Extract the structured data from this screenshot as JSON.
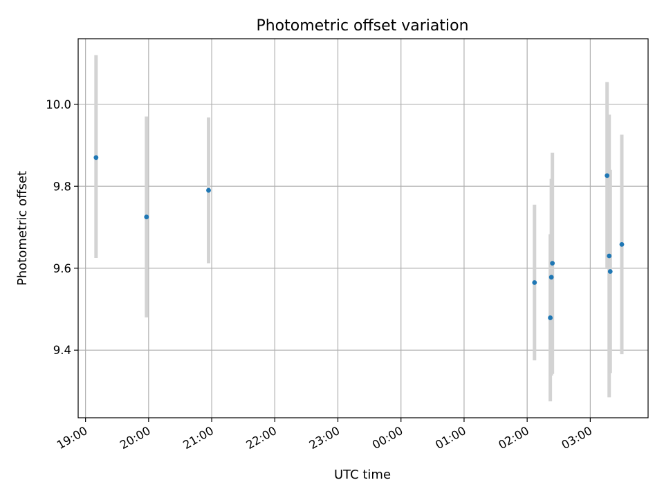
{
  "chart_data": {
    "type": "scatter",
    "title": "Photometric offset variation",
    "xlabel": "UTC time",
    "ylabel": "Photometric offset",
    "x_axis": {
      "kind": "time",
      "range": [
        "18:53",
        "03:55"
      ],
      "ticks": [
        "19:00",
        "20:00",
        "21:00",
        "22:00",
        "23:00",
        "00:00",
        "01:00",
        "02:00",
        "03:00"
      ]
    },
    "y_axis": {
      "range": [
        9.235,
        10.16
      ],
      "ticks": [
        9.4,
        9.6,
        9.8,
        10.0
      ],
      "tick_labels": [
        "9.4",
        "9.6",
        "9.8",
        "10.0"
      ]
    },
    "grid": true,
    "colors": {
      "point": "#1f77b4",
      "errorbar": "#d3d3d3",
      "grid": "#b0b0b0"
    },
    "points": [
      {
        "time": "19:10",
        "y": 9.87,
        "err_low": 9.625,
        "err_high": 10.12
      },
      {
        "time": "19:58",
        "y": 9.725,
        "err_low": 9.48,
        "err_high": 9.97
      },
      {
        "time": "20:57",
        "y": 9.79,
        "err_low": 9.612,
        "err_high": 9.968
      },
      {
        "time": "02:07",
        "y": 9.565,
        "err_low": 9.375,
        "err_high": 9.755
      },
      {
        "time": "02:22",
        "y": 9.479,
        "err_low": 9.275,
        "err_high": 9.683
      },
      {
        "time": "02:23",
        "y": 9.578,
        "err_low": 9.338,
        "err_high": 9.818
      },
      {
        "time": "02:24",
        "y": 9.612,
        "err_low": 9.342,
        "err_high": 9.882
      },
      {
        "time": "03:16",
        "y": 9.826,
        "err_low": 9.598,
        "err_high": 10.054
      },
      {
        "time": "03:18",
        "y": 9.63,
        "err_low": 9.285,
        "err_high": 9.975
      },
      {
        "time": "03:19",
        "y": 9.592,
        "err_low": 9.344,
        "err_high": 9.84
      },
      {
        "time": "03:30",
        "y": 9.658,
        "err_low": 9.39,
        "err_high": 9.926
      }
    ]
  }
}
